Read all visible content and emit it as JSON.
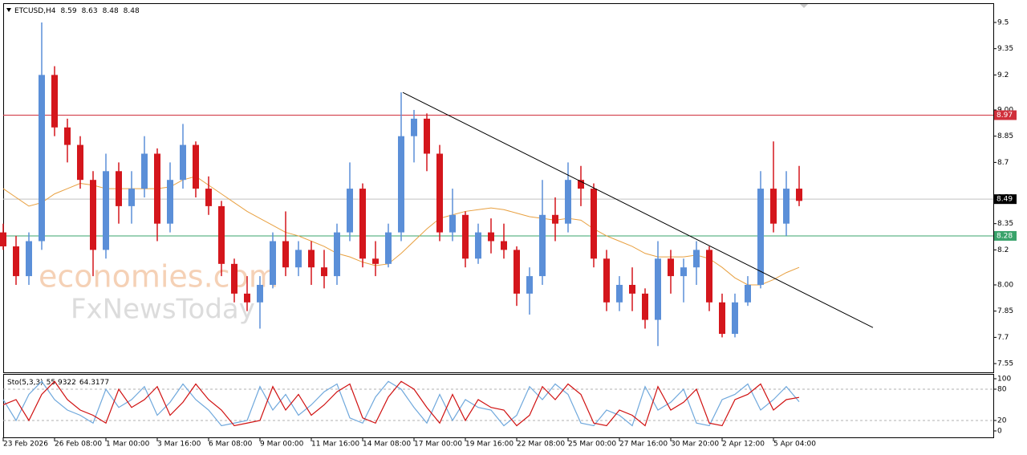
{
  "chart_data": [
    {
      "type": "candlestick",
      "symbol": "ETCUSD,H4",
      "ohlc": [
        8.59,
        8.63,
        8.48,
        8.48
      ],
      "x": [
        0,
        4,
        8,
        12,
        16,
        20,
        24,
        28,
        32,
        36,
        40,
        44,
        48,
        52,
        56,
        60,
        64,
        68,
        72,
        76,
        80,
        84,
        88,
        92,
        96,
        100,
        104,
        108,
        112,
        116,
        120,
        124,
        128,
        132,
        136,
        140,
        144,
        148,
        152,
        156,
        160,
        164,
        168,
        172,
        176,
        180,
        184,
        188,
        192,
        196,
        200,
        204,
        208,
        212,
        216,
        220,
        224,
        228,
        232,
        236,
        240,
        244,
        248
      ],
      "open": [
        8.3,
        8.22,
        8.05,
        8.25,
        9.2,
        8.9,
        8.8,
        8.6,
        8.2,
        8.65,
        8.45,
        8.55,
        8.75,
        8.35,
        8.6,
        8.8,
        8.55,
        8.45,
        8.12,
        7.95,
        7.9,
        8.0,
        8.25,
        8.1,
        8.2,
        8.1,
        8.05,
        8.3,
        8.55,
        8.15,
        8.12,
        8.3,
        8.85,
        8.95,
        8.75,
        8.3,
        8.4,
        8.15,
        8.3,
        8.25,
        8.2,
        7.95,
        8.05,
        8.4,
        8.35,
        8.6,
        8.55,
        8.15,
        7.9,
        8.0,
        7.95,
        7.8,
        8.15,
        8.05,
        8.1,
        8.2,
        7.9,
        7.72,
        7.9,
        8.0,
        8.55,
        8.35,
        8.55
      ],
      "high": [
        8.35,
        8.28,
        8.3,
        9.5,
        9.25,
        8.95,
        8.85,
        8.65,
        8.75,
        8.7,
        8.65,
        8.85,
        8.78,
        8.7,
        8.92,
        8.82,
        8.62,
        8.48,
        8.15,
        8.05,
        8.05,
        8.3,
        8.42,
        8.25,
        8.25,
        8.2,
        8.35,
        8.7,
        8.58,
        8.25,
        8.35,
        9.1,
        9.0,
        8.98,
        8.8,
        8.55,
        8.42,
        8.35,
        8.38,
        8.35,
        8.22,
        8.1,
        8.6,
        8.5,
        8.7,
        8.68,
        8.58,
        8.2,
        8.05,
        8.1,
        7.98,
        8.25,
        8.2,
        8.15,
        8.25,
        8.22,
        7.95,
        7.95,
        8.05,
        8.65,
        8.82,
        8.65,
        8.68
      ],
      "low": [
        8.2,
        8.0,
        8.0,
        8.2,
        8.85,
        8.7,
        8.55,
        8.05,
        8.15,
        8.35,
        8.35,
        8.5,
        8.25,
        8.3,
        8.55,
        8.5,
        8.4,
        8.05,
        7.9,
        7.85,
        7.75,
        7.98,
        8.05,
        8.05,
        8.0,
        7.98,
        8.0,
        8.25,
        8.1,
        8.05,
        8.1,
        8.25,
        8.7,
        8.65,
        8.25,
        8.25,
        8.1,
        8.12,
        8.18,
        8.15,
        7.88,
        7.83,
        8.0,
        8.25,
        8.3,
        8.45,
        8.1,
        7.85,
        7.85,
        7.85,
        7.75,
        7.65,
        7.95,
        7.9,
        8.0,
        7.85,
        7.7,
        7.7,
        7.88,
        7.98,
        8.3,
        8.28,
        8.45
      ],
      "close": [
        8.22,
        8.05,
        8.25,
        9.2,
        8.9,
        8.8,
        8.6,
        8.2,
        8.65,
        8.45,
        8.55,
        8.75,
        8.35,
        8.6,
        8.8,
        8.55,
        8.45,
        8.12,
        7.95,
        7.9,
        8.0,
        8.25,
        8.1,
        8.2,
        8.1,
        8.05,
        8.3,
        8.55,
        8.15,
        8.12,
        8.3,
        8.85,
        8.95,
        8.75,
        8.3,
        8.4,
        8.15,
        8.3,
        8.25,
        8.2,
        7.95,
        8.05,
        8.4,
        8.35,
        8.6,
        8.55,
        8.15,
        7.9,
        8.0,
        7.95,
        7.8,
        8.15,
        8.05,
        8.1,
        8.2,
        7.9,
        7.72,
        7.9,
        8.0,
        8.55,
        8.35,
        8.55,
        8.48
      ],
      "up_color": "#5b8fd8",
      "down_color": "#d4161c",
      "ma": {
        "color": "#e8a040",
        "values": [
          8.55,
          8.5,
          8.45,
          8.47,
          8.52,
          8.55,
          8.58,
          8.57,
          8.55,
          8.55,
          8.55,
          8.55,
          8.55,
          8.56,
          8.6,
          8.62,
          8.57,
          8.52,
          8.47,
          8.42,
          8.38,
          8.34,
          8.3,
          8.28,
          8.25,
          8.22,
          8.18,
          8.16,
          8.13,
          8.11,
          8.12,
          8.18,
          8.25,
          8.32,
          8.38,
          8.4,
          8.42,
          8.43,
          8.44,
          8.43,
          8.41,
          8.39,
          8.38,
          8.37,
          8.38,
          8.37,
          8.32,
          8.28,
          8.25,
          8.22,
          8.18,
          8.16,
          8.16,
          8.16,
          8.17,
          8.15,
          8.1,
          8.04,
          8.0,
          8.0,
          8.03,
          8.07,
          8.1
        ]
      },
      "trendline": {
        "color": "#000000",
        "x": [
          124.5,
          271
        ],
        "y": [
          9.1,
          7.756
        ]
      },
      "levels": [
        {
          "value": 8.97,
          "color": "#d0303c"
        },
        {
          "value": 8.28,
          "color": "#3aa36b"
        },
        {
          "value": 8.49,
          "color": "#000000"
        }
      ],
      "xlim": [
        0,
        308.5
      ],
      "ylim": [
        7.5,
        9.61
      ],
      "yticks": [
        9.5,
        9.35,
        9.2,
        {
          "value": 9.0,
          "label": "9.00"
        },
        8.85,
        8.7,
        {
          "value": 8.5,
          "label": "8.50"
        },
        8.35,
        8.2,
        {
          "value": 8.0,
          "label": "8.00"
        },
        7.85,
        7.7,
        7.55
      ],
      "xticks": [
        {
          "value": 0,
          "label": "23 Feb 2026"
        },
        {
          "value": 16,
          "label": "26 Feb 08:00"
        },
        {
          "value": 32,
          "label": "1 Mar 00:00"
        },
        {
          "value": 48,
          "label": "3 Mar 16:00"
        },
        {
          "value": 64,
          "label": "6 Mar 08:00"
        },
        {
          "value": 80,
          "label": "9 Mar 00:00"
        },
        {
          "value": 96,
          "label": "11 Mar 16:00"
        },
        {
          "value": 112,
          "label": "14 Mar 08:00"
        },
        {
          "value": 128,
          "label": "17 Mar 00:00"
        },
        {
          "value": 144,
          "label": "19 Mar 16:00"
        },
        {
          "value": 160,
          "label": "22 Mar 08:00"
        },
        {
          "value": 176,
          "label": "25 Mar 00:00"
        },
        {
          "value": 192,
          "label": "27 Mar 16:00"
        },
        {
          "value": 208,
          "label": "30 Mar 20:00"
        },
        {
          "value": 224,
          "label": "2 Apr 12:00"
        },
        {
          "value": 240,
          "label": "5 Apr 04:00"
        }
      ],
      "watermark": [
        "economies.com",
        "FxNewsToday"
      ]
    },
    {
      "type": "line",
      "title": "Sto(5,3,3)",
      "header_values": [
        55.9322,
        64.3177
      ],
      "x": [
        0,
        4,
        8,
        12,
        16,
        20,
        24,
        28,
        32,
        36,
        40,
        44,
        48,
        52,
        56,
        60,
        64,
        68,
        72,
        76,
        80,
        84,
        88,
        92,
        96,
        100,
        104,
        108,
        112,
        116,
        120,
        124,
        128,
        132,
        136,
        140,
        144,
        148,
        152,
        156,
        160,
        164,
        168,
        172,
        176,
        180,
        184,
        188,
        192,
        196,
        200,
        204,
        208,
        212,
        216,
        220,
        224,
        228,
        232,
        236,
        240,
        244,
        248
      ],
      "series": [
        {
          "color": "#6fa8dc",
          "values": [
            60,
            20,
            70,
            95,
            60,
            40,
            30,
            15,
            80,
            45,
            60,
            85,
            30,
            55,
            90,
            60,
            40,
            10,
            15,
            20,
            85,
            40,
            70,
            30,
            50,
            75,
            90,
            25,
            15,
            65,
            95,
            80,
            45,
            15,
            70,
            20,
            60,
            45,
            40,
            10,
            30,
            85,
            60,
            90,
            70,
            15,
            10,
            40,
            30,
            10,
            85,
            40,
            55,
            80,
            15,
            10,
            60,
            70,
            90,
            40,
            60,
            85,
            55.9322
          ]
        },
        {
          "color": "#d01010",
          "values": [
            50,
            60,
            20,
            70,
            95,
            60,
            40,
            30,
            15,
            80,
            45,
            60,
            85,
            30,
            55,
            90,
            60,
            40,
            10,
            15,
            20,
            85,
            40,
            70,
            30,
            50,
            75,
            90,
            25,
            15,
            65,
            95,
            80,
            45,
            15,
            70,
            20,
            60,
            45,
            40,
            10,
            30,
            85,
            60,
            90,
            70,
            15,
            10,
            40,
            30,
            10,
            85,
            40,
            55,
            80,
            15,
            10,
            60,
            70,
            90,
            40,
            60,
            64.3177
          ]
        }
      ],
      "levels": [
        80,
        20
      ],
      "xlim": [
        0,
        308.5
      ],
      "ylim": [
        -12.3,
        109.2
      ],
      "yticks": [
        100,
        80,
        20,
        0
      ]
    }
  ]
}
